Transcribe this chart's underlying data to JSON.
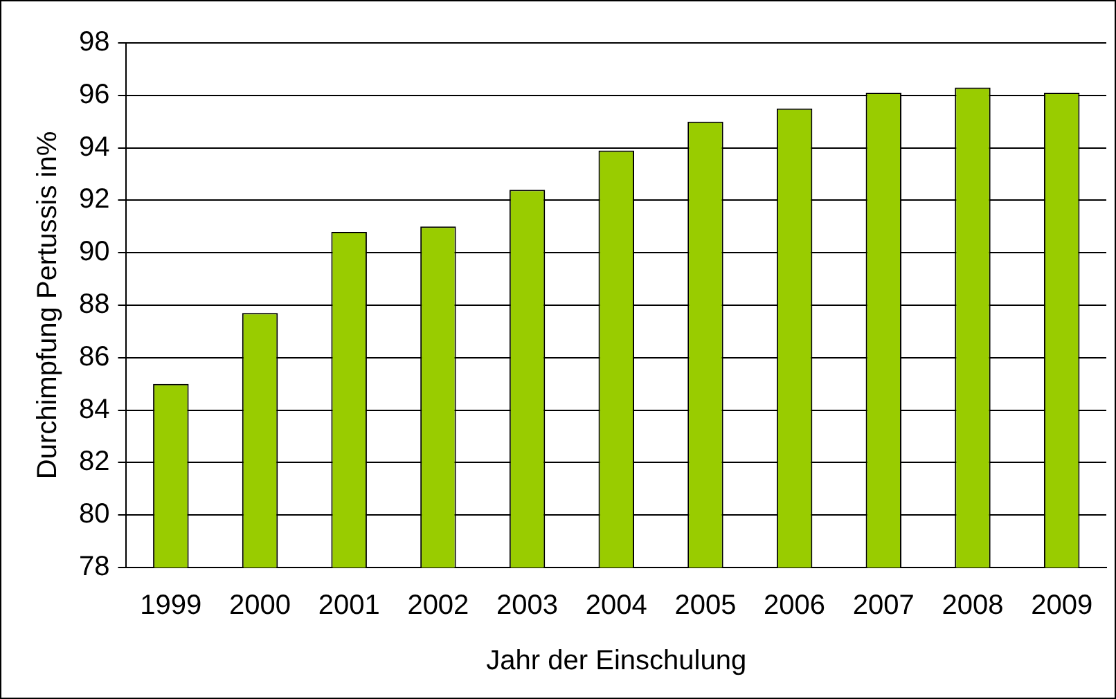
{
  "chart_data": {
    "type": "bar",
    "xlabel": "Jahr der Einschulung",
    "ylabel": "Durchimpfung Pertussis in%",
    "categories": [
      "1999",
      "2000",
      "2001",
      "2002",
      "2003",
      "2004",
      "2005",
      "2006",
      "2007",
      "2008",
      "2009"
    ],
    "values": [
      85.0,
      87.7,
      90.8,
      91.0,
      92.4,
      93.9,
      95.0,
      95.5,
      96.1,
      96.3,
      96.1
    ],
    "color": "#99cc00",
    "ylim": [
      78,
      98
    ],
    "yticks": [
      78,
      80,
      82,
      84,
      86,
      88,
      90,
      92,
      94,
      96,
      98
    ],
    "grid": "y",
    "legend": false
  }
}
